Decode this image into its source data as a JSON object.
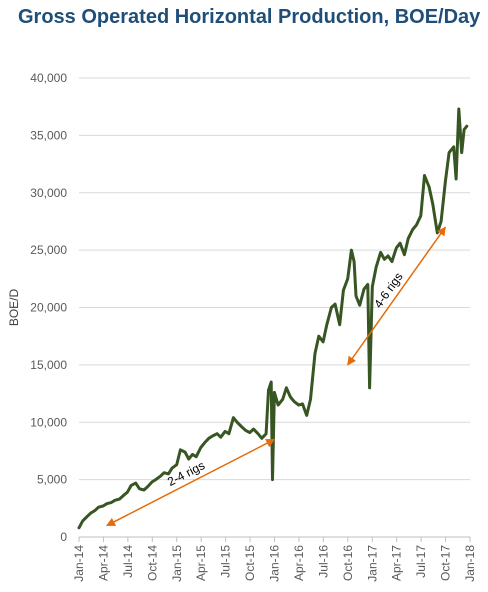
{
  "chart_data": {
    "type": "line",
    "title": "Gross Operated Horizontal Production, BOE/Day",
    "ylabel": "BOE/D",
    "xlabel": "",
    "ylim": [
      0,
      40000
    ],
    "yticks": [
      0,
      5000,
      10000,
      15000,
      20000,
      25000,
      30000,
      35000,
      40000
    ],
    "ytick_labels": [
      "0",
      "5,000",
      "10,000",
      "15,000",
      "20,000",
      "25,000",
      "30,000",
      "35,000",
      "40,000"
    ],
    "xlim": [
      "2014-01",
      "2018-01"
    ],
    "xtick_labels": [
      "Jan-14",
      "Apr-14",
      "Jul-14",
      "Oct-14",
      "Jan-15",
      "Apr-15",
      "Jul-15",
      "Oct-15",
      "Jan-16",
      "Apr-16",
      "Jul-16",
      "Oct-16",
      "Jan-17",
      "Apr-17",
      "Jul-17",
      "Oct-17",
      "Jan-18"
    ],
    "grid": "horizontal",
    "series_color": "#375623",
    "annotation_color": "#e46c0a",
    "series": [
      {
        "values": [
          [
            "2014-01-01",
            800
          ],
          [
            "2014-01-15",
            1400
          ],
          [
            "2014-02-01",
            1800
          ],
          [
            "2014-02-15",
            2100
          ],
          [
            "2014-03-01",
            2300
          ],
          [
            "2014-03-15",
            2600
          ],
          [
            "2014-04-01",
            2700
          ],
          [
            "2014-04-15",
            2900
          ],
          [
            "2014-05-01",
            3000
          ],
          [
            "2014-05-15",
            3200
          ],
          [
            "2014-06-01",
            3300
          ],
          [
            "2014-06-15",
            3600
          ],
          [
            "2014-07-01",
            3900
          ],
          [
            "2014-07-15",
            4500
          ],
          [
            "2014-08-01",
            4700
          ],
          [
            "2014-08-15",
            4200
          ],
          [
            "2014-09-01",
            4100
          ],
          [
            "2014-09-15",
            4400
          ],
          [
            "2014-10-01",
            4800
          ],
          [
            "2014-10-15",
            5000
          ],
          [
            "2014-11-01",
            5300
          ],
          [
            "2014-11-15",
            5600
          ],
          [
            "2014-12-01",
            5500
          ],
          [
            "2014-12-15",
            6000
          ],
          [
            "2015-01-01",
            6300
          ],
          [
            "2015-01-15",
            7600
          ],
          [
            "2015-02-01",
            7400
          ],
          [
            "2015-02-15",
            6800
          ],
          [
            "2015-03-01",
            7200
          ],
          [
            "2015-03-15",
            7000
          ],
          [
            "2015-04-01",
            7800
          ],
          [
            "2015-04-15",
            8200
          ],
          [
            "2015-05-01",
            8600
          ],
          [
            "2015-05-15",
            8800
          ],
          [
            "2015-06-01",
            9000
          ],
          [
            "2015-06-15",
            8700
          ],
          [
            "2015-07-01",
            9200
          ],
          [
            "2015-07-15",
            9000
          ],
          [
            "2015-08-01",
            10400
          ],
          [
            "2015-08-15",
            10000
          ],
          [
            "2015-09-01",
            9600
          ],
          [
            "2015-09-15",
            9300
          ],
          [
            "2015-10-01",
            9100
          ],
          [
            "2015-10-15",
            9400
          ],
          [
            "2015-11-01",
            9000
          ],
          [
            "2015-11-15",
            8600
          ],
          [
            "2015-12-01",
            9000
          ],
          [
            "2015-12-10",
            12800
          ],
          [
            "2015-12-20",
            13500
          ],
          [
            "2015-12-25",
            5000
          ],
          [
            "2016-01-01",
            12600
          ],
          [
            "2016-01-15",
            11500
          ],
          [
            "2016-02-01",
            12000
          ],
          [
            "2016-02-15",
            13000
          ],
          [
            "2016-03-01",
            12200
          ],
          [
            "2016-03-15",
            11800
          ],
          [
            "2016-04-01",
            11500
          ],
          [
            "2016-04-15",
            11600
          ],
          [
            "2016-05-01",
            10600
          ],
          [
            "2016-05-15",
            12000
          ],
          [
            "2016-06-01",
            16000
          ],
          [
            "2016-06-15",
            17500
          ],
          [
            "2016-07-01",
            17000
          ],
          [
            "2016-07-15",
            18500
          ],
          [
            "2016-08-01",
            20000
          ],
          [
            "2016-08-15",
            20300
          ],
          [
            "2016-09-01",
            18500
          ],
          [
            "2016-09-15",
            21500
          ],
          [
            "2016-10-01",
            22500
          ],
          [
            "2016-10-15",
            25000
          ],
          [
            "2016-10-25",
            24000
          ],
          [
            "2016-11-01",
            21000
          ],
          [
            "2016-11-15",
            20200
          ],
          [
            "2016-12-01",
            21600
          ],
          [
            "2016-12-15",
            22000
          ],
          [
            "2016-12-22",
            13000
          ],
          [
            "2017-01-01",
            21800
          ],
          [
            "2017-01-15",
            23500
          ],
          [
            "2017-02-01",
            24800
          ],
          [
            "2017-02-15",
            24200
          ],
          [
            "2017-03-01",
            24500
          ],
          [
            "2017-03-15",
            24000
          ],
          [
            "2017-04-01",
            25200
          ],
          [
            "2017-04-15",
            25600
          ],
          [
            "2017-05-01",
            24600
          ],
          [
            "2017-05-15",
            26000
          ],
          [
            "2017-06-01",
            26800
          ],
          [
            "2017-06-15",
            27200
          ],
          [
            "2017-07-01",
            28000
          ],
          [
            "2017-07-15",
            31500
          ],
          [
            "2017-08-01",
            30500
          ],
          [
            "2017-08-15",
            29000
          ],
          [
            "2017-09-01",
            26500
          ],
          [
            "2017-09-15",
            27500
          ],
          [
            "2017-10-01",
            31000
          ],
          [
            "2017-10-15",
            33500
          ],
          [
            "2017-11-01",
            34000
          ],
          [
            "2017-11-10",
            31200
          ],
          [
            "2017-11-20",
            37300
          ],
          [
            "2017-12-01",
            33500
          ],
          [
            "2017-12-10",
            35500
          ],
          [
            "2017-12-20",
            35800
          ]
        ]
      }
    ],
    "annotations": [
      {
        "text": "2-4 rigs",
        "from": [
          "2014-04-15",
          1000
        ],
        "to": [
          "2016-01-01",
          8500
        ]
      },
      {
        "text": "4-6 rigs",
        "from": [
          "2016-10-01",
          15000
        ],
        "to": [
          "2017-10-01",
          27000
        ]
      }
    ]
  }
}
